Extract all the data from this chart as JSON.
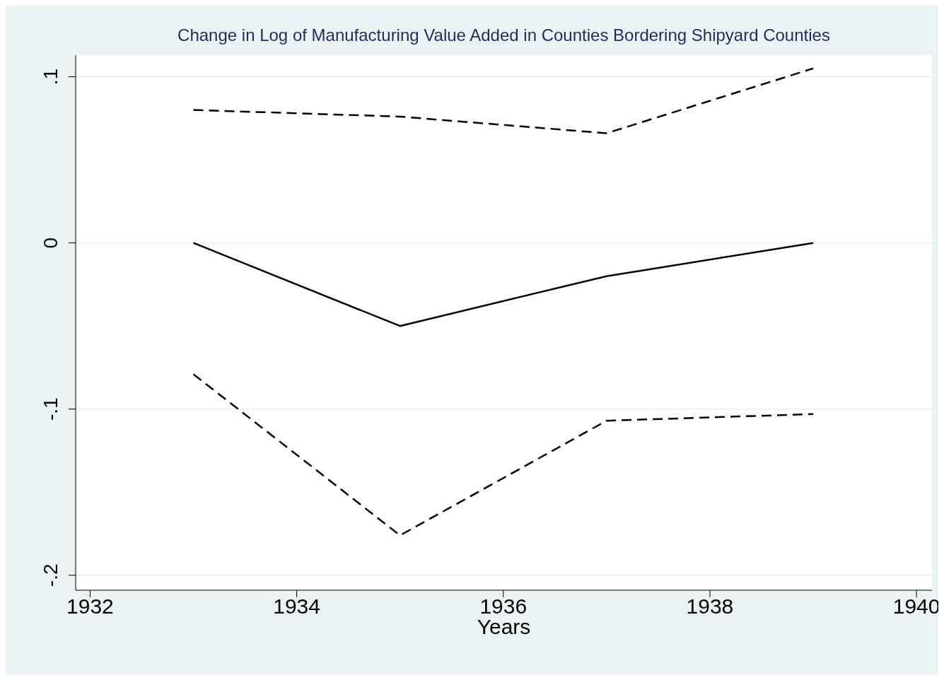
{
  "chart_data": {
    "type": "line",
    "title": "Change in Log of Manufacturing Value Added in Counties Bordering Shipyard Counties",
    "xlabel": "Years",
    "x": [
      1933,
      1935,
      1937,
      1939
    ],
    "series": [
      {
        "color": "#000000",
        "line_style": "dashed",
        "values": [
          0.08,
          0.076,
          0.066,
          0.105
        ]
      },
      {
        "color": "#000000",
        "line_style": "solid",
        "values": [
          0.0,
          -0.05,
          -0.02,
          0.0
        ]
      },
      {
        "color": "#000000",
        "line_style": "dashed",
        "values": [
          -0.079,
          -0.176,
          -0.107,
          -0.103
        ]
      }
    ],
    "xlim": [
      1931.86,
      1940.15
    ],
    "xticks": [
      1932,
      1934,
      1936,
      1938,
      1940
    ],
    "ylim": [
      -0.209,
      0.113
    ],
    "yticks": [
      {
        "value": 0.1,
        "label": ".1"
      },
      {
        "value": 0,
        "label": "0"
      },
      {
        "value": -0.1,
        "label": "-.1"
      },
      {
        "value": -0.2,
        "label": "-.2"
      }
    ],
    "grid": "y",
    "marker": "none"
  }
}
